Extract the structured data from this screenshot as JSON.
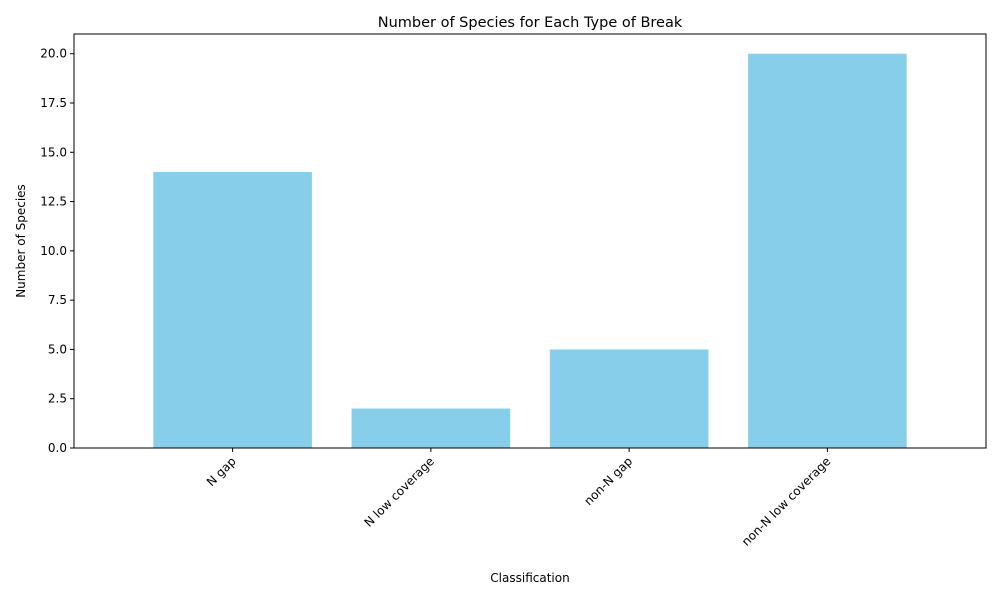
{
  "chart_data": {
    "type": "bar",
    "title": "Number of Species for Each Type of Break",
    "xlabel": "Classification",
    "ylabel": "Number of Species",
    "categories": [
      "N gap",
      "N low coverage",
      "non-N gap",
      "non-N low coverage"
    ],
    "values": [
      14,
      2,
      5,
      20
    ],
    "ylim": [
      0,
      21
    ],
    "yticks": [
      0.0,
      2.5,
      5.0,
      7.5,
      10.0,
      12.5,
      15.0,
      17.5,
      20.0
    ],
    "ytick_labels": [
      "0.0",
      "2.5",
      "5.0",
      "7.5",
      "10.0",
      "12.5",
      "15.0",
      "17.5",
      "20.0"
    ],
    "bar_color": "#87CEEB",
    "grid": false,
    "xtick_rotation_deg": 45
  }
}
